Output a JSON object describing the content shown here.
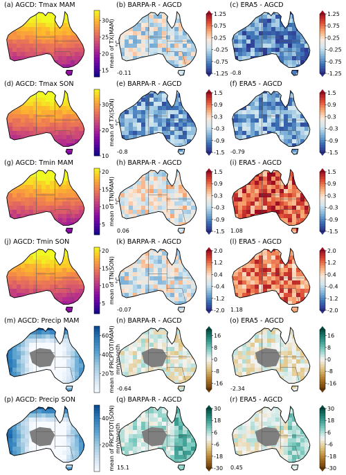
{
  "chart_data": [
    {
      "panel": "(a)",
      "type": "heatmap",
      "title": "(a) AGCD: Tmax MAM",
      "cbar_label": "mean of TX(MAM)",
      "cbar_unit": "°C",
      "ticks": [
        "30",
        "25",
        "20",
        "15"
      ],
      "vmin": 13,
      "vmax": 33,
      "cmap": "plasma"
    },
    {
      "panel": "(b)",
      "type": "heatmap",
      "title": "(b) BARPA-R - AGCD",
      "stat": "-0.11",
      "ticks": [
        "1.25",
        "0.75",
        "0.25",
        "-0.25",
        "-0.75",
        "-1.25"
      ],
      "vmin": -1.25,
      "vmax": 1.25,
      "cmap": "RdBu_r"
    },
    {
      "panel": "(c)",
      "type": "heatmap",
      "title": "(c) ERA5 - AGCD",
      "stat": "-0.8",
      "ticks": [
        "1.25",
        "0.75",
        "0.25",
        "-0.25",
        "-0.75",
        "-1.25"
      ],
      "vmin": -1.25,
      "vmax": 1.25,
      "cmap": "RdBu_r"
    },
    {
      "panel": "(d)",
      "type": "heatmap",
      "title": "(d) AGCD: Tmax SON",
      "cbar_label": "mean of TX(SON)",
      "cbar_unit": "°C",
      "ticks": [
        "30",
        "20",
        "10"
      ],
      "vmin": 10,
      "vmax": 36,
      "cmap": "plasma"
    },
    {
      "panel": "(e)",
      "type": "heatmap",
      "title": "(e) BARPA-R - AGCD",
      "stat": "-0.8",
      "ticks": [
        "1.5",
        "0.9",
        "0.3",
        "-0.3",
        "-0.9",
        "-1.5"
      ],
      "vmin": -1.5,
      "vmax": 1.5,
      "cmap": "RdBu_r"
    },
    {
      "panel": "(f)",
      "type": "heatmap",
      "title": "(f) ERA5 - AGCD",
      "stat": "-0.79",
      "ticks": [
        "1.5",
        "0.9",
        "0.3",
        "-0.3",
        "-0.9",
        "-1.5"
      ],
      "vmin": -1.5,
      "vmax": 1.5,
      "cmap": "RdBu_r"
    },
    {
      "panel": "(g)",
      "type": "heatmap",
      "title": "(g) AGCD: Tmin MAM",
      "cbar_label": "mean of TN(MAM)",
      "cbar_unit": "°C",
      "ticks": [
        "20",
        "15",
        "10",
        "5"
      ],
      "vmin": 2,
      "vmax": 21,
      "cmap": "plasma"
    },
    {
      "panel": "(h)",
      "type": "heatmap",
      "title": "(h) BARPA-R - AGCD",
      "stat": "0.06",
      "ticks": [
        "1.5",
        "0.9",
        "0.3",
        "-0.3",
        "-0.9",
        "-1.5"
      ],
      "vmin": -1.5,
      "vmax": 1.5,
      "cmap": "RdBu_r"
    },
    {
      "panel": "(i)",
      "type": "heatmap",
      "title": "(i) ERA5 - AGCD",
      "stat": "1.08",
      "ticks": [
        "1.5",
        "0.9",
        "0.3",
        "-0.3",
        "-0.9",
        "-1.5"
      ],
      "vmin": -1.5,
      "vmax": 1.5,
      "cmap": "RdBu_r"
    },
    {
      "panel": "(j)",
      "type": "heatmap",
      "title": "(j) AGCD: Tmin SON",
      "cbar_label": "mean of TN(SON)",
      "cbar_unit": "°C",
      "ticks": [
        "20",
        "15",
        "10",
        "5"
      ],
      "vmin": 2,
      "vmax": 21,
      "cmap": "plasma"
    },
    {
      "panel": "(k)",
      "type": "heatmap",
      "title": "(k) BARPA-R - AGCD",
      "stat": "-0.07",
      "ticks": [
        "2.0",
        "1.2",
        "0.4",
        "-0.4",
        "-1.2",
        "-2.0"
      ],
      "vmin": -2.0,
      "vmax": 2.0,
      "cmap": "RdBu_r"
    },
    {
      "panel": "(l)",
      "type": "heatmap",
      "title": "(l) ERA5 - AGCD",
      "stat": "1.18",
      "ticks": [
        "2.0",
        "1.2",
        "0.4",
        "-0.4",
        "-1.2",
        "-2.0"
      ],
      "vmin": -2.0,
      "vmax": 2.0,
      "cmap": "RdBu_r"
    },
    {
      "panel": "(m)",
      "type": "heatmap",
      "title": "(m) AGCD: Precip MAM",
      "cbar_label": "mean of PRCPTOT(MAM)",
      "cbar_unit": "mm/month",
      "ticks": [
        "60",
        "40",
        "20"
      ],
      "vmin": 0,
      "vmax": 70,
      "cmap": "Blues"
    },
    {
      "panel": "(n)",
      "type": "heatmap",
      "title": "(n) BARPA-R - AGCD",
      "stat": "-0.64",
      "ticks": [
        "16",
        "8",
        "0",
        "-8",
        "-16"
      ],
      "vmin": -20,
      "vmax": 20,
      "cmap": "BrBG"
    },
    {
      "panel": "(o)",
      "type": "heatmap",
      "title": "(o) ERA5 - AGCD",
      "stat": "-2.34",
      "ticks": [
        "16",
        "8",
        "0",
        "-8",
        "-16"
      ],
      "vmin": -20,
      "vmax": 20,
      "cmap": "BrBG"
    },
    {
      "panel": "(p)",
      "type": "heatmap",
      "title": "(p) AGCD: Precip SON",
      "cbar_label": "mean of PRCPTOT(SON)",
      "cbar_unit": "mm/month",
      "ticks": [
        "40",
        "20"
      ],
      "vmin": 0,
      "vmax": 50,
      "cmap": "Blues"
    },
    {
      "panel": "(q)",
      "type": "heatmap",
      "title": "(q) BARPA-R - AGCD",
      "stat": "15.1",
      "ticks": [
        "30",
        "18",
        "6",
        "-6",
        "-18",
        "-30"
      ],
      "vmin": -30,
      "vmax": 30,
      "cmap": "BrBG"
    },
    {
      "panel": "(r)",
      "type": "heatmap",
      "title": "(r) ERA5 - AGCD",
      "stat": "0.45",
      "ticks": [
        "30",
        "18",
        "6",
        "-6",
        "-18",
        "-30"
      ],
      "vmin": -30,
      "vmax": 30,
      "cmap": "BrBG"
    }
  ]
}
